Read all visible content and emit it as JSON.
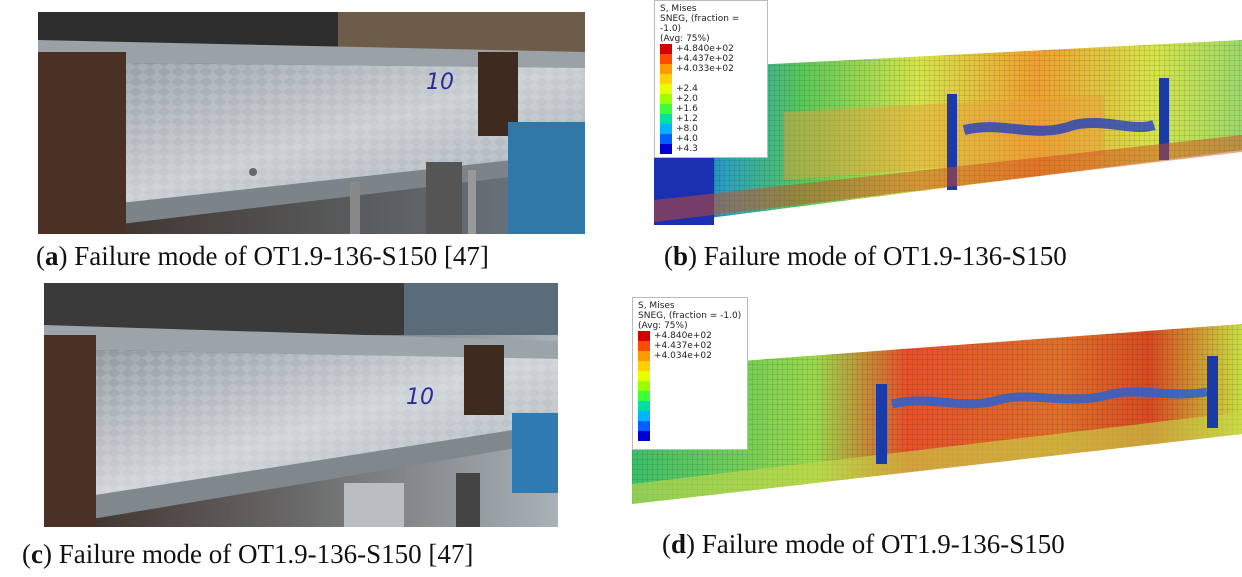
{
  "captions": {
    "a": {
      "letter": "a",
      "text": "Failure mode of OT1.9-136-S150 [47]"
    },
    "b": {
      "letter": "b",
      "text": "Failure mode of OT1.9-136-S150"
    },
    "c": {
      "letter": "c",
      "text": "Failure mode of OT1.9-136-S150 [47]"
    },
    "d": {
      "letter": "d",
      "text": "Failure mode of OT1.9-136-S150"
    }
  },
  "photo_a": {
    "handwritten_mark": "10"
  },
  "photo_c": {
    "handwritten_mark": "10"
  },
  "legend_b": {
    "line1": "S, Mises",
    "line2": "SNEG, (fraction = -1.0)",
    "line3": "(Avg: 75%)",
    "values": [
      "+4.840e+02",
      "+4.437e+02",
      "+4.033e+02",
      "",
      "+2.4",
      "+2.0",
      "+1.6",
      "+1.2",
      "+8.0",
      "+4.0",
      "+4.3"
    ]
  },
  "legend_d": {
    "line1": "S, Mises",
    "line2": "SNEG, (fraction = -1.0)",
    "line3": "(Avg: 75%)",
    "values": [
      "+4.840e+02",
      "+4.437e+02",
      "+4.034e+02",
      "",
      "",
      "",
      "",
      "",
      "",
      "",
      ""
    ]
  },
  "colors": {
    "contour_scale": [
      "#d40000",
      "#ff4a00",
      "#ff9900",
      "#ffd000",
      "#e8ff00",
      "#9cff00",
      "#3cff3c",
      "#00e0a0",
      "#00b4ff",
      "#0060ff",
      "#0000d0"
    ]
  }
}
